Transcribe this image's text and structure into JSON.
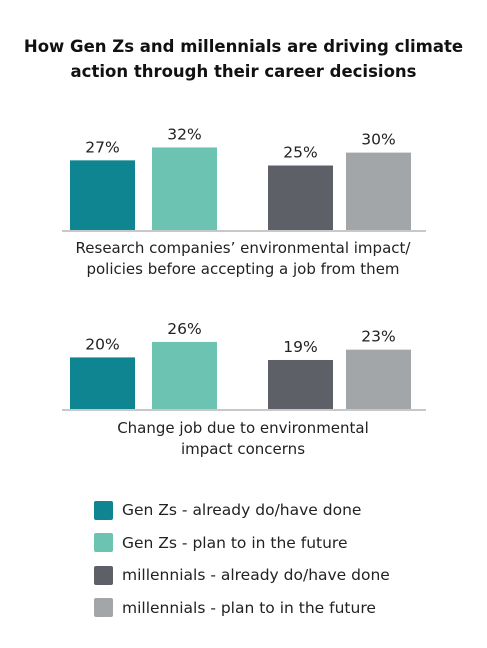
{
  "chart_data": {
    "type": "bar",
    "title_lines": [
      "How Gen Zs and millennials are driving climate",
      "action through their career decisions"
    ],
    "ylim": [
      0,
      40
    ],
    "value_suffix": "%",
    "series": [
      {
        "name": "Gen Zs - already do/have done",
        "color": "#0e8590"
      },
      {
        "name": "Gen Zs - plan to in the future",
        "color": "#6cc3b2"
      },
      {
        "name": "millennials - already do/have done",
        "color": "#5e6068"
      },
      {
        "name": "millennials - plan to in the future",
        "color": "#a3a6a8"
      }
    ],
    "groups": [
      {
        "label_lines": [
          "Research companies’ environmental impact/",
          "policies before accepting a job from them"
        ],
        "values": [
          27,
          32,
          25,
          30
        ]
      },
      {
        "label_lines": [
          "Change job due to environmental",
          "impact concerns"
        ],
        "values": [
          20,
          26,
          19,
          23
        ]
      }
    ],
    "axis_color": "#c8c8c8"
  }
}
